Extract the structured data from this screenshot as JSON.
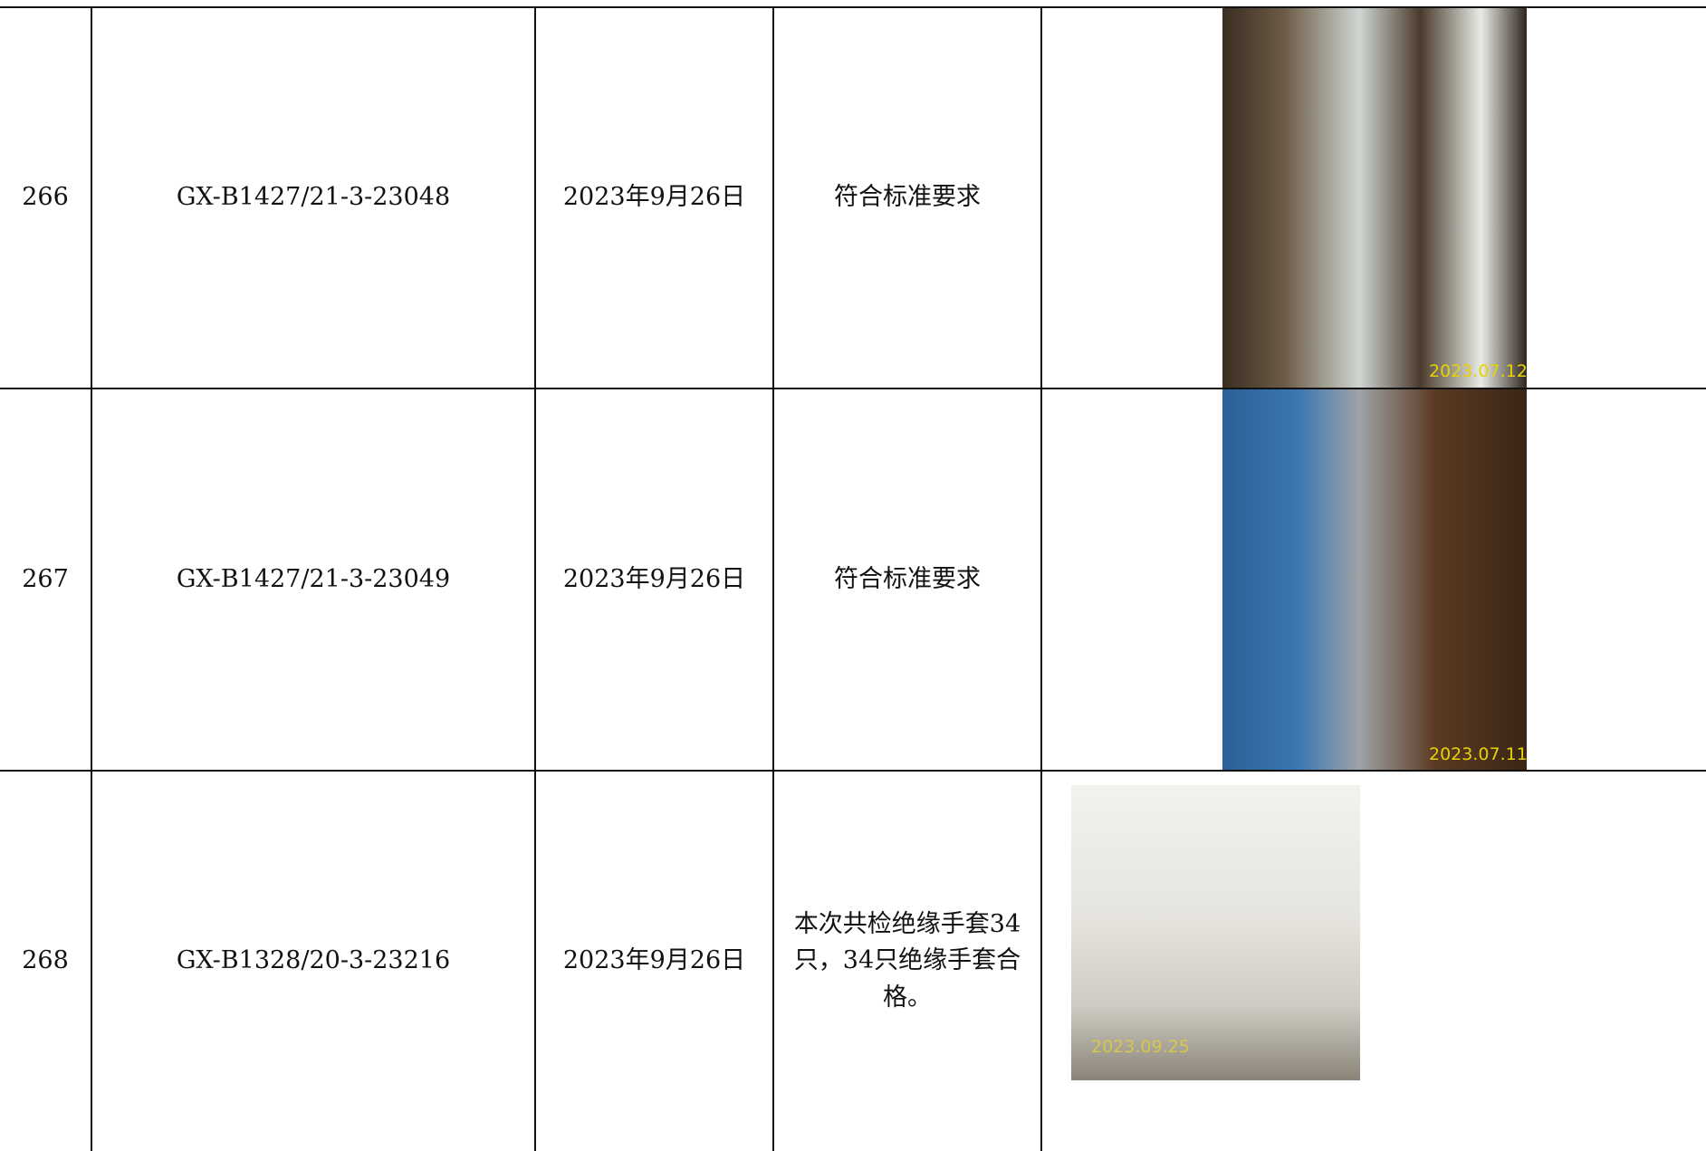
{
  "table": {
    "rows": [
      {
        "no": "266",
        "code": "GX-B1427/21-3-23048",
        "date": "2023年9月26日",
        "result": "符合标准要求",
        "photo_stamp": "2023.07.12"
      },
      {
        "no": "267",
        "code": "GX-B1427/21-3-23049",
        "date": "2023年9月26日",
        "result": "符合标准要求",
        "photo_stamp": "2023.07.11"
      },
      {
        "no": "268",
        "code": "GX-B1328/20-3-23216",
        "date": "2023年9月26日",
        "result": "本次共检绝缘手套34只，34只绝缘手套合格。",
        "photo_stamp": "2023.09.25"
      }
    ]
  }
}
